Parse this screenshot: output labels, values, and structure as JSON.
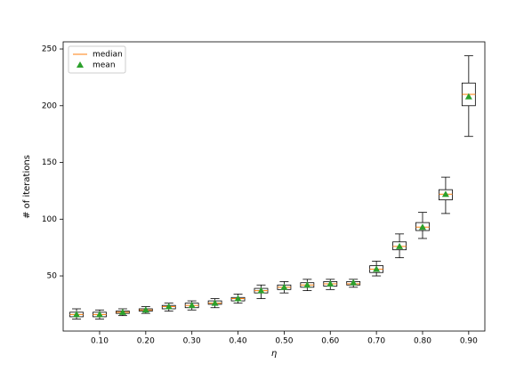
{
  "chart_data": {
    "type": "box",
    "x_label": "η",
    "y_label": "# of iterations",
    "xlim": [
      0.021,
      0.935
    ],
    "ylim": [
      1.4,
      256.3
    ],
    "xticks": [
      {
        "value": 0.1,
        "label": "0.10"
      },
      {
        "value": 0.2,
        "label": "0.20"
      },
      {
        "value": 0.3,
        "label": "0.30"
      },
      {
        "value": 0.4,
        "label": "0.40"
      },
      {
        "value": 0.5,
        "label": "0.50"
      },
      {
        "value": 0.6,
        "label": "0.60"
      },
      {
        "value": 0.7,
        "label": "0.70"
      },
      {
        "value": 0.8,
        "label": "0.80"
      },
      {
        "value": 0.9,
        "label": "0.90"
      }
    ],
    "yticks": [
      50,
      100,
      150,
      200,
      250
    ],
    "legend_position": "upper left",
    "median_name": "median",
    "median_color": "#ff7f0e",
    "mean_name": "mean",
    "mean_color": "#2ca02c",
    "boxes": [
      {
        "x": 0.05,
        "whislo": 12,
        "q1": 14,
        "med": 16,
        "q3": 18,
        "whishi": 21,
        "mean": 16
      },
      {
        "x": 0.1,
        "whislo": 12,
        "q1": 14,
        "med": 16,
        "q3": 18,
        "whishi": 20,
        "mean": 16
      },
      {
        "x": 0.15,
        "whislo": 15,
        "q1": 17,
        "med": 18,
        "q3": 19,
        "whishi": 21,
        "mean": 18
      },
      {
        "x": 0.2,
        "whislo": 17,
        "q1": 19,
        "med": 20,
        "q3": 21,
        "whishi": 23,
        "mean": 20
      },
      {
        "x": 0.25,
        "whislo": 19,
        "q1": 21,
        "med": 23,
        "q3": 24,
        "whishi": 26,
        "mean": 23
      },
      {
        "x": 0.3,
        "whislo": 20,
        "q1": 22,
        "med": 24,
        "q3": 26,
        "whishi": 28,
        "mean": 24
      },
      {
        "x": 0.35,
        "whislo": 22,
        "q1": 25,
        "med": 26,
        "q3": 28,
        "whishi": 30,
        "mean": 26
      },
      {
        "x": 0.4,
        "whislo": 26,
        "q1": 28,
        "med": 30,
        "q3": 31,
        "whishi": 34,
        "mean": 30
      },
      {
        "x": 0.45,
        "whislo": 30,
        "q1": 35,
        "med": 37,
        "q3": 39,
        "whishi": 42,
        "mean": 37
      },
      {
        "x": 0.5,
        "whislo": 35,
        "q1": 38,
        "med": 40,
        "q3": 42,
        "whishi": 45,
        "mean": 40
      },
      {
        "x": 0.55,
        "whislo": 37,
        "q1": 40,
        "med": 42,
        "q3": 44,
        "whishi": 47,
        "mean": 42
      },
      {
        "x": 0.6,
        "whislo": 38,
        "q1": 41,
        "med": 43,
        "q3": 45,
        "whishi": 47,
        "mean": 43
      },
      {
        "x": 0.65,
        "whislo": 40,
        "q1": 42,
        "med": 43,
        "q3": 45,
        "whishi": 47,
        "mean": 44
      },
      {
        "x": 0.7,
        "whislo": 50,
        "q1": 53,
        "med": 56,
        "q3": 59,
        "whishi": 63,
        "mean": 56
      },
      {
        "x": 0.75,
        "whislo": 66,
        "q1": 73,
        "med": 76,
        "q3": 80,
        "whishi": 87,
        "mean": 76
      },
      {
        "x": 0.8,
        "whislo": 83,
        "q1": 90,
        "med": 93,
        "q3": 97,
        "whishi": 106,
        "mean": 93
      },
      {
        "x": 0.85,
        "whislo": 105,
        "q1": 117,
        "med": 122,
        "q3": 126,
        "whishi": 137,
        "mean": 122
      },
      {
        "x": 0.9,
        "whislo": 173,
        "q1": 200,
        "med": 210,
        "q3": 220,
        "whishi": 244,
        "mean": 208
      }
    ]
  }
}
